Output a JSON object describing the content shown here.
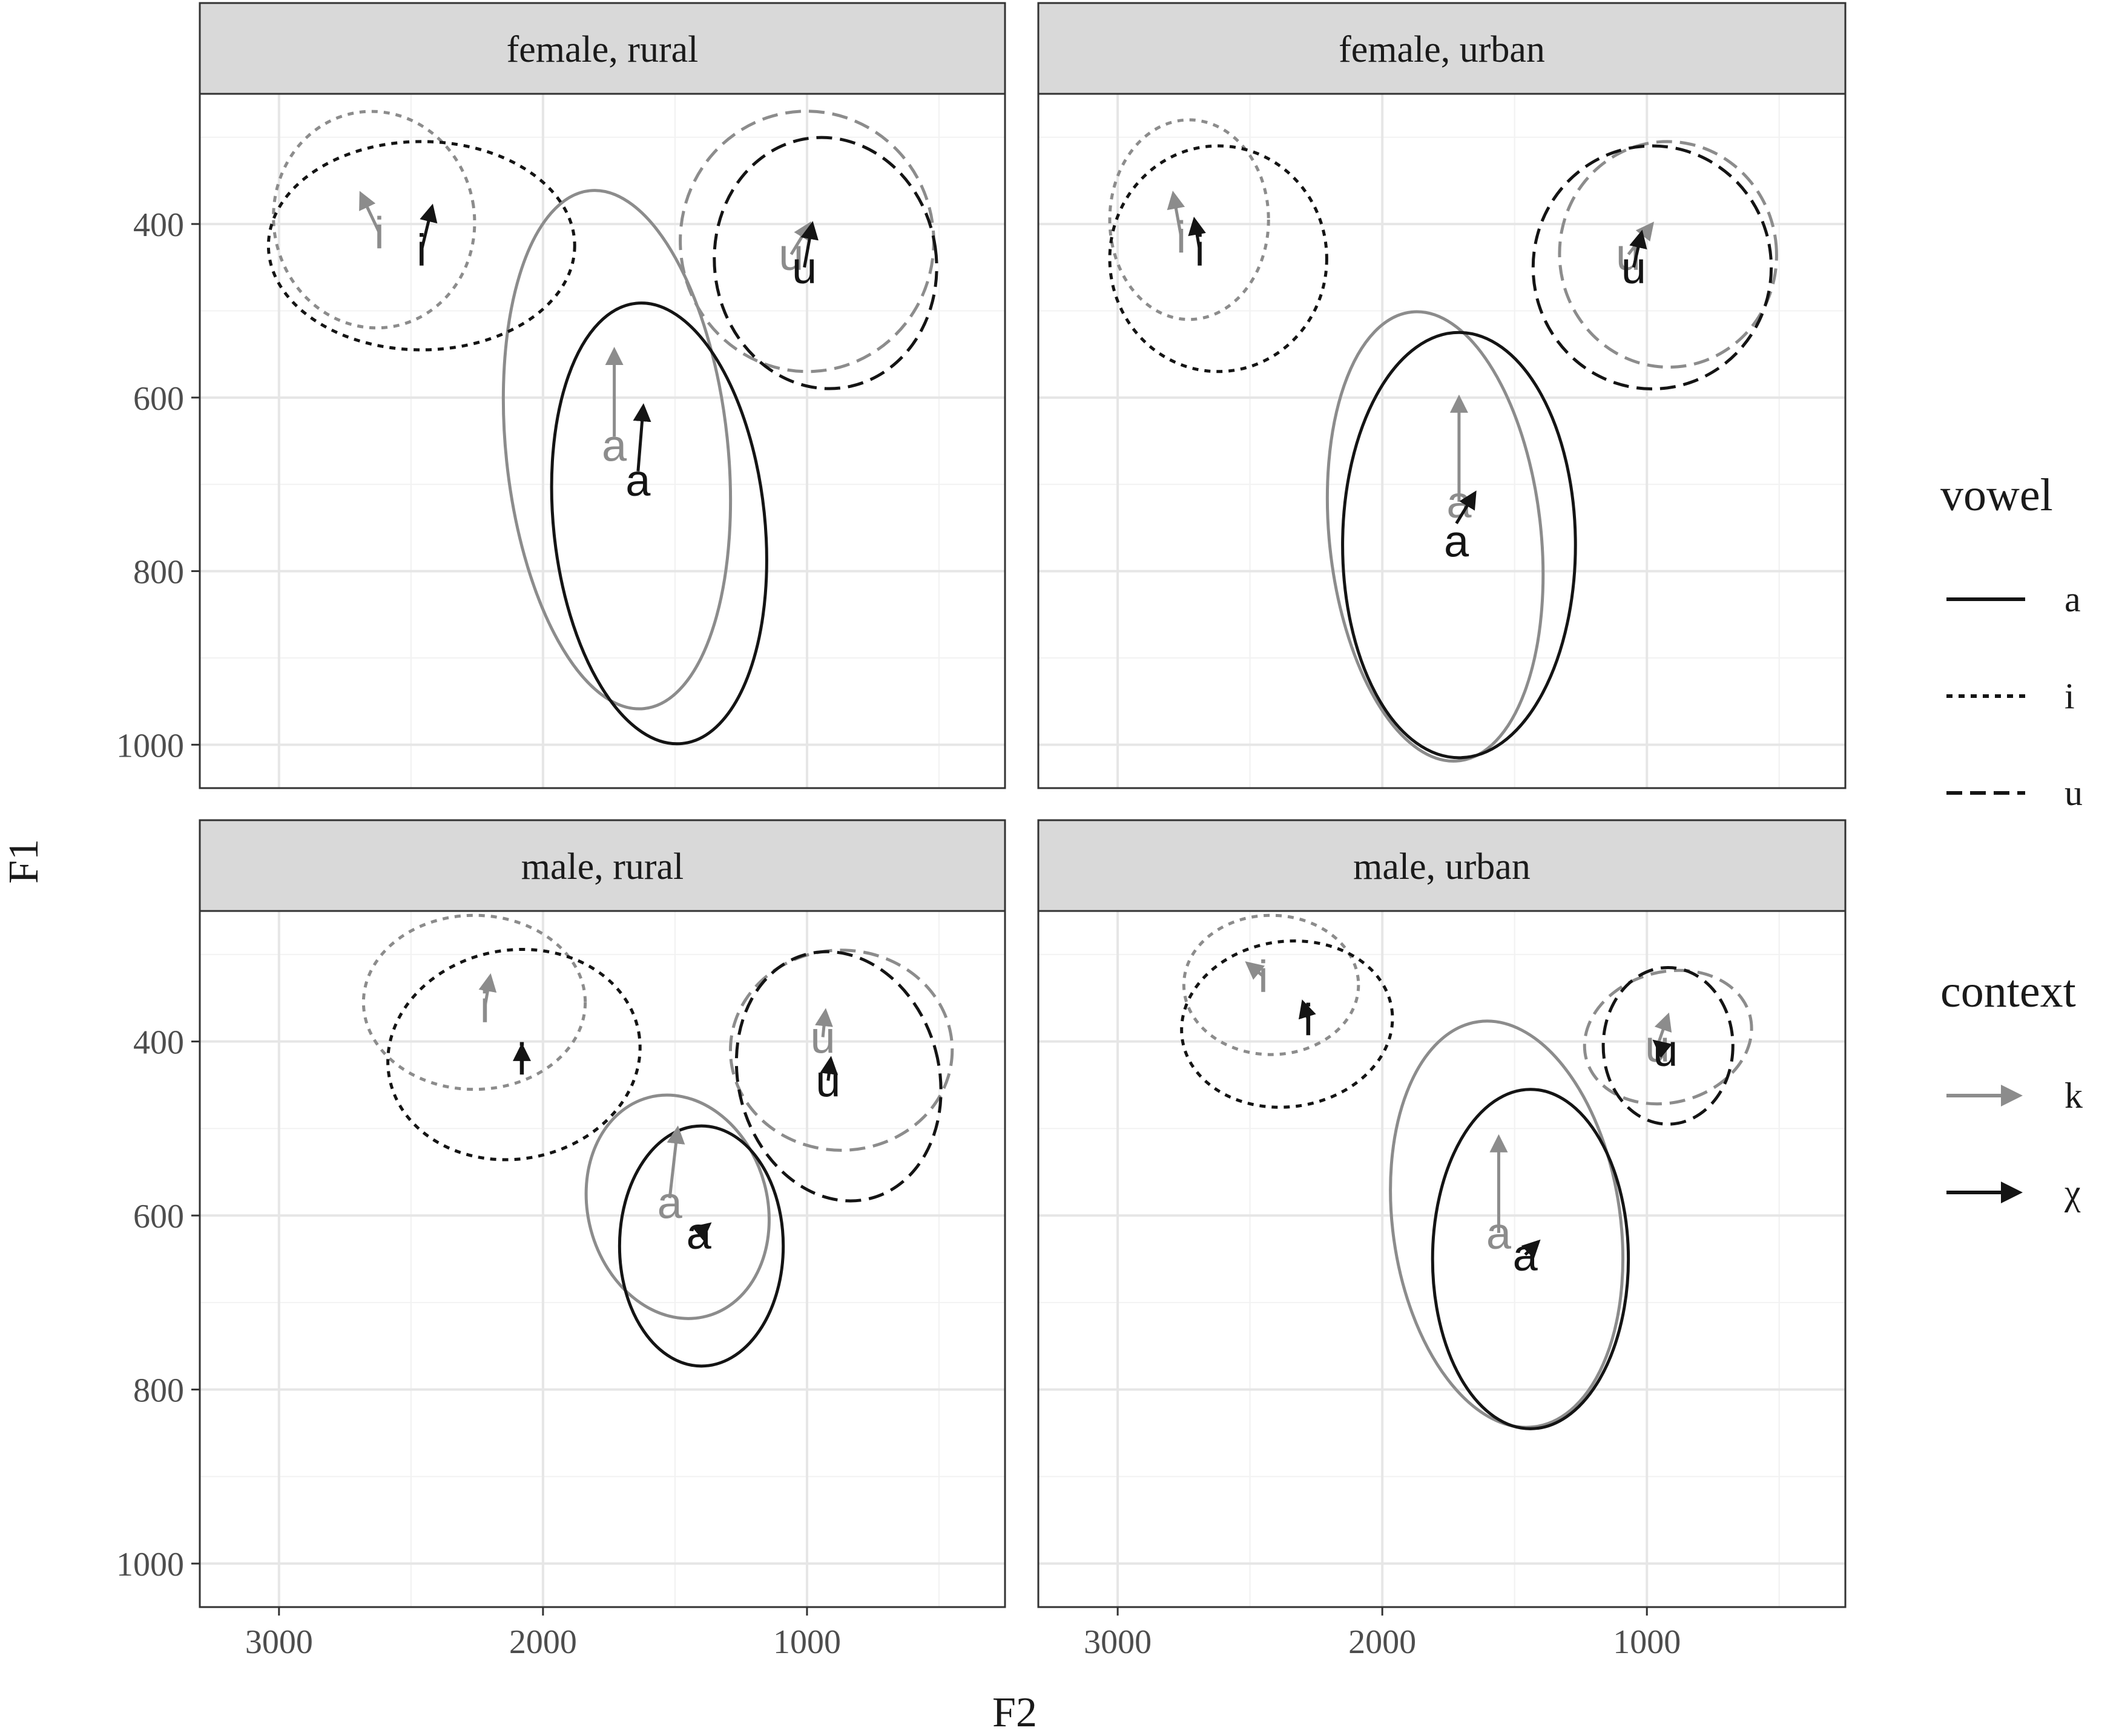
{
  "colors": {
    "k": "#8c8c8c",
    "chi": "#141414",
    "strip_fill": "#d9d9d9",
    "grid_major": "#e6e6e6",
    "grid_minor": "#f2f2f2",
    "border": "#333333"
  },
  "chart_data": {
    "type": "scatter",
    "xlabel": "F2",
    "ylabel": "F1",
    "x_reversed": true,
    "y_reversed": true,
    "xlim": [
      3300,
      250
    ],
    "ylim": [
      250,
      1050
    ],
    "x_ticks": [
      3000,
      2000,
      1000
    ],
    "y_ticks": [
      400,
      600,
      800,
      1000
    ],
    "grid": true,
    "legend_placement": "right",
    "legends": [
      {
        "title": "vowel",
        "entries": [
          {
            "label": "a",
            "linetype": "solid"
          },
          {
            "label": "i",
            "linetype": "dotted"
          },
          {
            "label": "u",
            "linetype": "dashed"
          }
        ]
      },
      {
        "title": "context",
        "entries": [
          {
            "label": "k",
            "color_key": "k"
          },
          {
            "label": "χ",
            "color_key": "chi"
          }
        ]
      }
    ],
    "panels": [
      {
        "title": "female, rural",
        "vowels": [
          {
            "vowel": "a",
            "k": {
              "ellipse": {
                "cx": 1720,
                "cy": 660,
                "rx": 420,
                "ry": 300,
                "rot": -6
              },
              "label": [
                1730,
                655
              ],
              "arrow": [
                1730,
                645,
                1730,
                545
              ]
            },
            "chi": {
              "ellipse": {
                "cx": 1560,
                "cy": 745,
                "rx": 400,
                "ry": 255,
                "rot": -6
              },
              "label": [
                1640,
                695
              ],
              "arrow": [
                1640,
                685,
                1620,
                610
              ]
            }
          },
          {
            "vowel": "i",
            "k": {
              "ellipse": {
                "cx": 2640,
                "cy": 395,
                "rx": 380,
                "ry": 125,
                "rot": -10
              },
              "label": [
                2620,
                410
              ],
              "arrow": [
                2620,
                410,
                2690,
                365
              ]
            },
            "chi": {
              "ellipse": {
                "cx": 2460,
                "cy": 425,
                "rx": 580,
                "ry": 120,
                "rot": 0
              },
              "label": [
                2460,
                430
              ],
              "arrow": [
                2460,
                430,
                2420,
                380
              ]
            }
          },
          {
            "vowel": "u",
            "k": {
              "ellipse": {
                "cx": 1000,
                "cy": 420,
                "rx": 480,
                "ry": 150,
                "rot": -3
              },
              "label": [
                1060,
                435
              ],
              "arrow": [
                1060,
                435,
                990,
                400
              ]
            },
            "chi": {
              "ellipse": {
                "cx": 930,
                "cy": 445,
                "rx": 420,
                "ry": 145,
                "rot": -8
              },
              "label": [
                1010,
                450
              ],
              "arrow": [
                1010,
                450,
                980,
                400
              ]
            }
          }
        ]
      },
      {
        "title": "female, urban",
        "vowels": [
          {
            "vowel": "a",
            "k": {
              "ellipse": {
                "cx": 1800,
                "cy": 760,
                "rx": 400,
                "ry": 260,
                "rot": -6
              },
              "label": [
                1710,
                720
              ],
              "arrow": [
                1710,
                720,
                1710,
                600
              ]
            },
            "chi": {
              "ellipse": {
                "cx": 1710,
                "cy": 770,
                "rx": 440,
                "ry": 245,
                "rot": 0
              },
              "label": [
                1720,
                765
              ],
              "arrow": [
                1720,
                745,
                1650,
                710
              ]
            }
          },
          {
            "vowel": "i",
            "k": {
              "ellipse": {
                "cx": 2730,
                "cy": 395,
                "rx": 300,
                "ry": 115,
                "rot": 0
              },
              "label": [
                2760,
                415
              ],
              "arrow": [
                2760,
                415,
                2790,
                365
              ]
            },
            "chi": {
              "ellipse": {
                "cx": 2620,
                "cy": 440,
                "rx": 410,
                "ry": 130,
                "rot": 0
              },
              "label": [
                2690,
                430
              ],
              "arrow": [
                2690,
                430,
                2710,
                395
              ]
            }
          },
          {
            "vowel": "u",
            "k": {
              "ellipse": {
                "cx": 920,
                "cy": 435,
                "rx": 410,
                "ry": 130,
                "rot": -5
              },
              "label": [
                1070,
                435
              ],
              "arrow": [
                1070,
                435,
                980,
                400
              ]
            },
            "chi": {
              "ellipse": {
                "cx": 980,
                "cy": 450,
                "rx": 450,
                "ry": 140,
                "rot": 0
              },
              "label": [
                1050,
                450
              ],
              "arrow": [
                1050,
                450,
                1020,
                410
              ]
            }
          }
        ]
      },
      {
        "title": "male, rural",
        "vowels": [
          {
            "vowel": "a",
            "k": {
              "ellipse": {
                "cx": 1490,
                "cy": 590,
                "rx": 340,
                "ry": 130,
                "rot": -15
              },
              "label": [
                1520,
                585
              ],
              "arrow": [
                1520,
                580,
                1490,
                500
              ]
            },
            "chi": {
              "ellipse": {
                "cx": 1400,
                "cy": 635,
                "rx": 310,
                "ry": 138,
                "rot": 0
              },
              "label": [
                1410,
                620
              ],
              "arrow": [
                1410,
                620,
                1370,
                610
              ]
            }
          },
          {
            "vowel": "i",
            "k": {
              "ellipse": {
                "cx": 2260,
                "cy": 355,
                "rx": 420,
                "ry": 100,
                "rot": 0
              },
              "label": [
                2220,
                360
              ],
              "arrow": [
                2220,
                360,
                2200,
                325
              ]
            },
            "chi": {
              "ellipse": {
                "cx": 2110,
                "cy": 415,
                "rx": 480,
                "ry": 120,
                "rot": -10
              },
              "label": [
                2080,
                420
              ],
              "arrow": [
                2080,
                420,
                2080,
                405
              ]
            }
          },
          {
            "vowel": "u",
            "k": {
              "ellipse": {
                "cx": 870,
                "cy": 410,
                "rx": 420,
                "ry": 115,
                "rot": 0
              },
              "label": [
                940,
                395
              ],
              "arrow": [
                940,
                395,
                930,
                365
              ]
            },
            "chi": {
              "ellipse": {
                "cx": 880,
                "cy": 440,
                "rx": 380,
                "ry": 145,
                "rot": -15
              },
              "label": [
                920,
                445
              ],
              "arrow": [
                920,
                445,
                910,
                420
              ]
            }
          }
        ]
      },
      {
        "title": "male, urban",
        "vowels": [
          {
            "vowel": "a",
            "k": {
              "ellipse": {
                "cx": 1530,
                "cy": 610,
                "rx": 430,
                "ry": 235,
                "rot": -8
              },
              "label": [
                1560,
                620
              ],
              "arrow": [
                1560,
                620,
                1560,
                510
              ]
            },
            "chi": {
              "ellipse": {
                "cx": 1440,
                "cy": 650,
                "rx": 370,
                "ry": 195,
                "rot": 0
              },
              "label": [
                1460,
                645
              ],
              "arrow": [
                1460,
                645,
                1410,
                630
              ]
            }
          },
          {
            "vowel": "i",
            "k": {
              "ellipse": {
                "cx": 2420,
                "cy": 335,
                "rx": 330,
                "ry": 80,
                "rot": 0
              },
              "label": [
                2450,
                325
              ],
              "arrow": [
                2450,
                325,
                2510,
                310
              ]
            },
            "chi": {
              "ellipse": {
                "cx": 2360,
                "cy": 380,
                "rx": 400,
                "ry": 95,
                "rot": -8
              },
              "label": [
                2280,
                375
              ],
              "arrow": [
                2280,
                375,
                2300,
                355
              ]
            }
          },
          {
            "vowel": "u",
            "k": {
              "ellipse": {
                "cx": 920,
                "cy": 395,
                "rx": 320,
                "ry": 75,
                "rot": -15
              },
              "label": [
                960,
                405
              ],
              "arrow": [
                960,
                405,
                920,
                370
              ]
            },
            "chi": {
              "ellipse": {
                "cx": 920,
                "cy": 405,
                "rx": 245,
                "ry": 90,
                "rot": 0
              },
              "label": [
                930,
                410
              ],
              "arrow": [
                930,
                410,
                970,
                400
              ]
            }
          }
        ]
      }
    ]
  }
}
